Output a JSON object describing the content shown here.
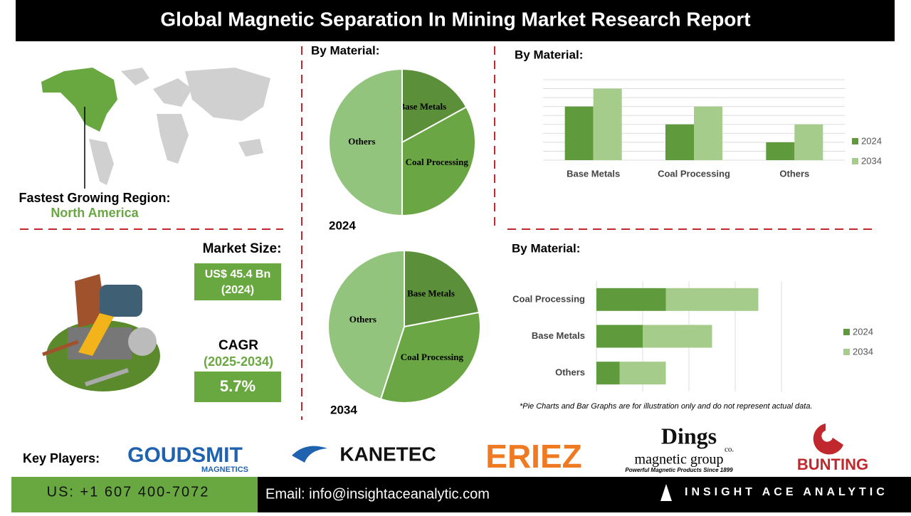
{
  "header": {
    "title": "Global Magnetic Separation In Mining Market Research Report"
  },
  "region": {
    "label": "Fastest Growing Region:",
    "value": "North America"
  },
  "market_size": {
    "label": "Market Size:",
    "value": "US$ 45.4 Bn",
    "year": "(2024)"
  },
  "cagr": {
    "label": "CAGR",
    "period": "(2025-2034)",
    "value": "5.7%"
  },
  "note": "*Pie Charts and Bar Graphs are for illustration only and do not represent actual data.",
  "key_players": {
    "label": "Key Players:",
    "goudsmit": "GOUDSMIT",
    "goudsmit_sub": "MAGNETICS",
    "kanetec": "KANETEC",
    "eriez": "ERIEZ",
    "dings": "Dings",
    "dings_co": "co.",
    "dings_sub": "magnetic group",
    "dings_tag": "Powerful Magnetic Products Since 1899",
    "bunting": "BUNTING"
  },
  "footer": {
    "phone": "US: +1 607 400-7072",
    "email": "Email: info@insightaceanalytic.com",
    "brand": "INSIGHT ACE ANALYTIC"
  },
  "chart_data": [
    {
      "type": "pie",
      "title": "By Material:",
      "label": "2024",
      "categories": [
        "Base Metals",
        "Coal Processing",
        "Others"
      ],
      "values": [
        17,
        33,
        50
      ],
      "colors": [
        "#5b8f3a",
        "#6aa744",
        "#93c47d"
      ]
    },
    {
      "type": "pie",
      "label": "2034",
      "categories": [
        "Base Metals",
        "Coal Processing",
        "Others"
      ],
      "values": [
        22,
        33,
        45
      ],
      "colors": [
        "#5b8f3a",
        "#6aa744",
        "#93c47d"
      ]
    },
    {
      "type": "bar",
      "title": "By Material:",
      "categories": [
        "Base Metals",
        "Coal Processing",
        "Others"
      ],
      "series": [
        {
          "name": "2024",
          "color": "#5f9b3c",
          "values": [
            6,
            4,
            2
          ]
        },
        {
          "name": "2034",
          "color": "#a5cc8a",
          "values": [
            8,
            6,
            4
          ]
        }
      ],
      "ylim": [
        0,
        9
      ],
      "yticks": [
        0,
        1,
        2,
        3,
        4,
        5,
        6,
        7,
        8,
        9
      ],
      "grid": true,
      "legend": "right"
    },
    {
      "type": "hbar",
      "stacked": true,
      "title": "By Material:",
      "categories": [
        "Coal Processing",
        "Base Metals",
        "Others"
      ],
      "series": [
        {
          "name": "2024",
          "color": "#5f9b3c",
          "values": [
            1.5,
            1,
            0.5
          ]
        },
        {
          "name": "2034",
          "color": "#a5cc8a",
          "values": [
            2,
            1.5,
            1
          ]
        }
      ],
      "xlim": [
        0,
        4
      ],
      "xticks": [
        0,
        1,
        2,
        3,
        4
      ],
      "grid": true,
      "legend": "right"
    }
  ]
}
